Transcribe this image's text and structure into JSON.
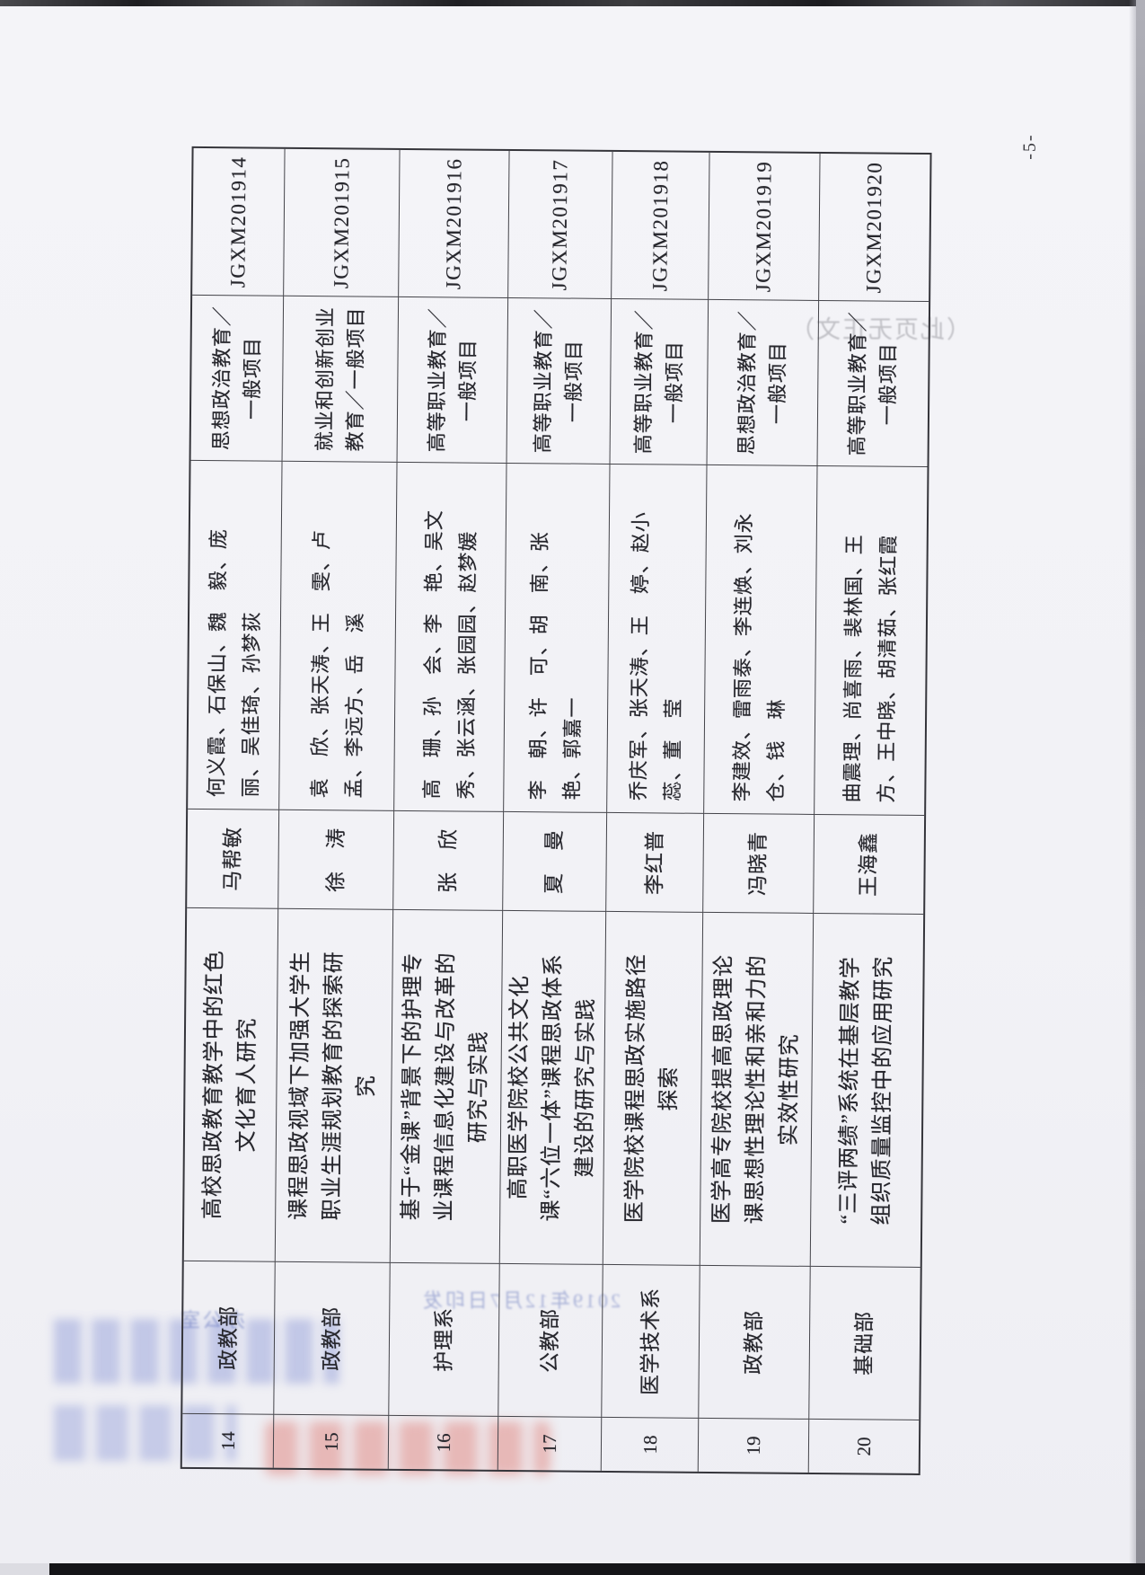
{
  "page": {
    "number_label": "-5-",
    "paper_color": "#f2f2f7",
    "ink_color": "#26262c"
  },
  "table": {
    "rows": [
      {
        "seq": "14",
        "dept": "政教部",
        "title": "高校思政教育教学中的红色文化育人研究",
        "leader": "马帮敏",
        "participants": "何义霞、石保山、魏　毅、庞　丽、吴佳琦、孙梦荻",
        "category": "思想政治教育／一般项目",
        "code": "JGXM201914"
      },
      {
        "seq": "15",
        "dept": "政教部",
        "title": "课程思政视域下加强大学生职业生涯规划教育的探索研究",
        "leader": "徐　涛",
        "participants": "袁　欣、张天涛、王　雯、卢　孟、李远方、岳　溪",
        "category": "就业和创新创业教育／一般项目",
        "code": "JGXM201915"
      },
      {
        "seq": "16",
        "dept": "护理系",
        "title": "基于“金课”背景下的护理专业课程信息化建设与改革的研究与实践",
        "leader": "张　欣",
        "participants": "高　珊、孙　会、李　艳、吴文秀、张云涵、张园园、赵梦媛",
        "category": "高等职业教育／一般项目",
        "code": "JGXM201916"
      },
      {
        "seq": "17",
        "dept": "公教部",
        "title": "高职医学院校公共文化课“六位一体”课程思政体系建设的研究与实践",
        "leader": "夏　曼",
        "participants": "李　朝、许　可、胡　南、张　艳、郭嘉一",
        "category": "高等职业教育／一般项目",
        "code": "JGXM201917"
      },
      {
        "seq": "18",
        "dept": "医学技术系",
        "title": "医学院校课程思政实施路径探索",
        "leader": "李红普",
        "participants": "乔庆军、张天涛、王　婷、赵小蕊、董　莹",
        "category": "高等职业教育／一般项目",
        "code": "JGXM201918"
      },
      {
        "seq": "19",
        "dept": "政教部",
        "title": "医学高专院校提高思政理论课思想性理论性和亲和力的实效性研究",
        "leader": "冯晓青",
        "participants": "李建效、雷雨泰、李连焕、刘永仓、钱　琳",
        "category": "思想政治教育／一般项目",
        "code": "JGXM201919"
      },
      {
        "seq": "20",
        "dept": "基础部",
        "title": "“三评两绩”系统在基层教学组织质量监控中的应用研究",
        "leader": "王海鑫",
        "participants": "曲震理、尚喜雨、裴林国、王　方、王中晓、胡清茹、张红霞",
        "category": "高等职业教育／一般项目",
        "code": "JGXM201920"
      }
    ]
  },
  "ghosts": {
    "print_date_line": "2019年12月7日印发",
    "office_line": "办公室",
    "no_content_note": "（此页无正文）"
  }
}
